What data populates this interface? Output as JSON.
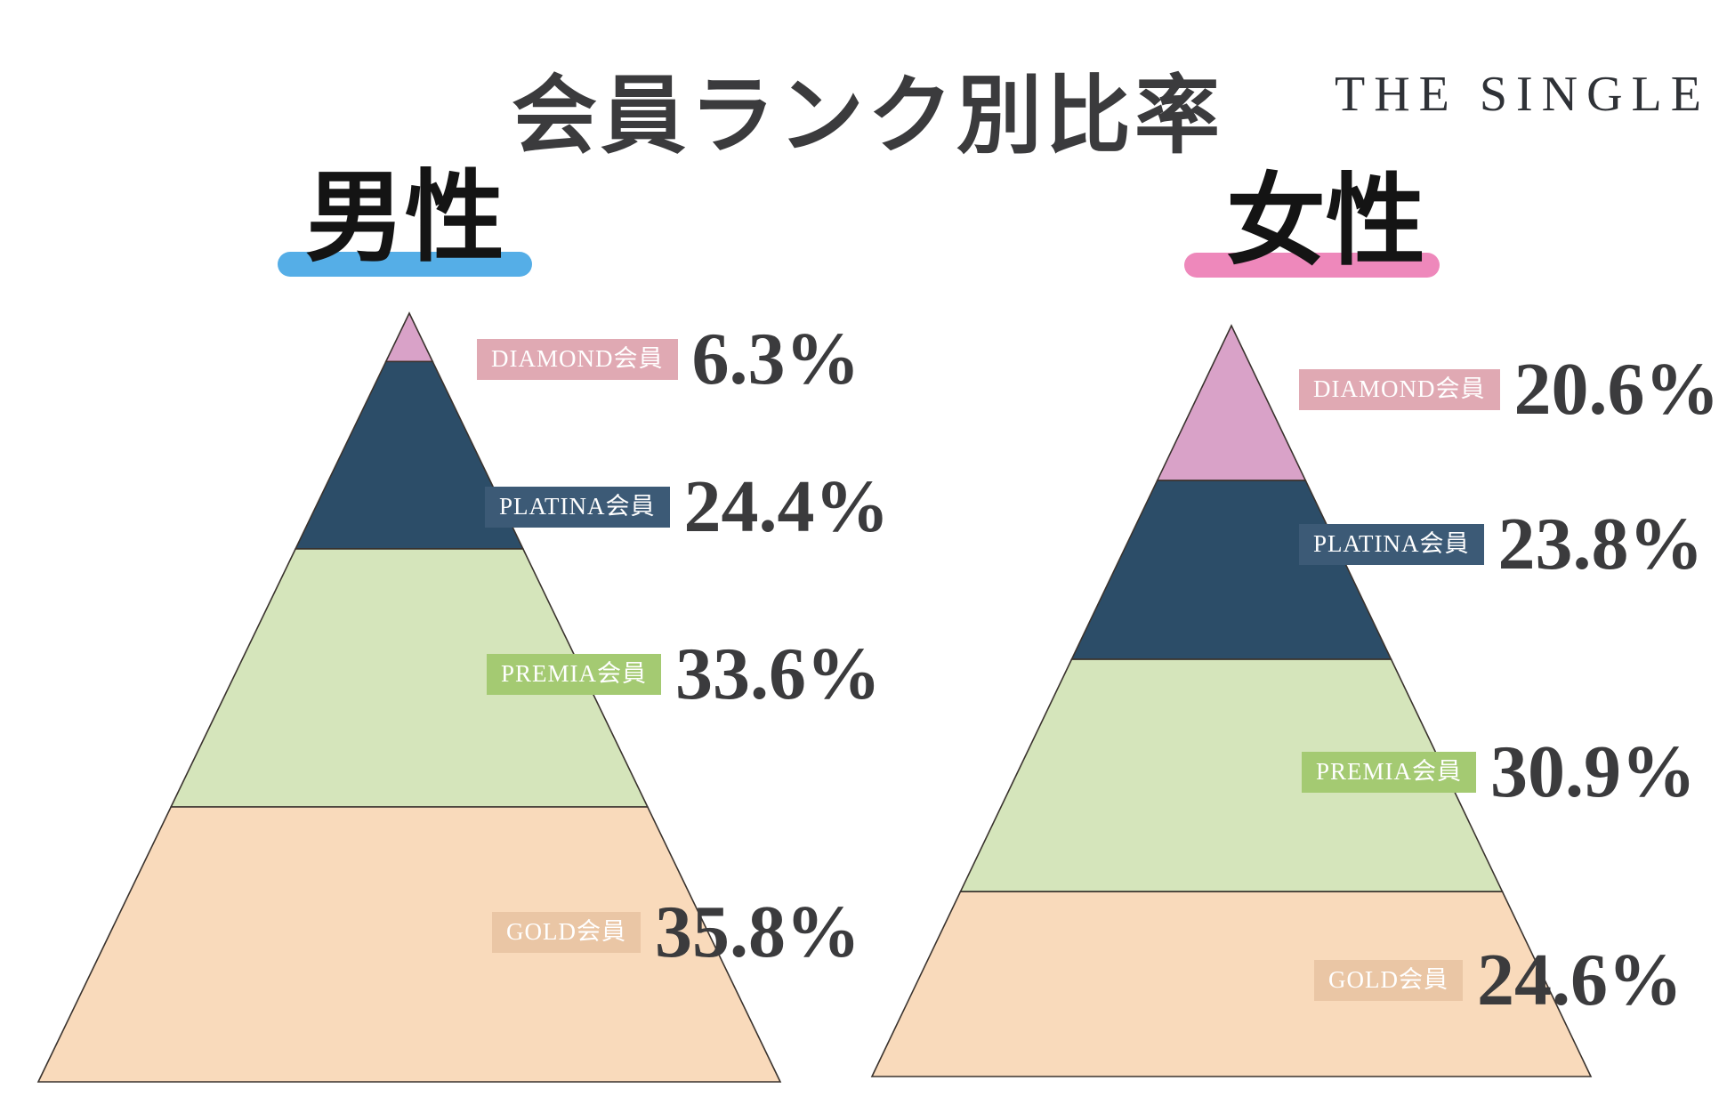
{
  "title": "会員ランク別比率",
  "logo": "THE SINGLE",
  "text_color": "#3b3b3d",
  "chart_data": [
    {
      "type": "pyramid",
      "group": "男性",
      "accent_color": "#55aee7",
      "segments": [
        {
          "label": "DIAMOND会員",
          "value": 6.3,
          "display": "6.3%",
          "fill": "#d9a2c8",
          "label_bg": "#e0a9b3"
        },
        {
          "label": "PLATINA会員",
          "value": 24.4,
          "display": "24.4%",
          "fill": "#2c4d68",
          "label_bg": "#3c5a76"
        },
        {
          "label": "PREMIA会員",
          "value": 33.6,
          "display": "33.6%",
          "fill": "#d5e5bb",
          "label_bg": "#a4ca72"
        },
        {
          "label": "GOLD会員",
          "value": 35.8,
          "display": "35.8%",
          "fill": "#f9dabb",
          "label_bg": "#eac6a5"
        }
      ]
    },
    {
      "type": "pyramid",
      "group": "女性",
      "accent_color": "#ee88bb",
      "segments": [
        {
          "label": "DIAMOND会員",
          "value": 20.6,
          "display": "20.6%",
          "fill": "#d9a2c8",
          "label_bg": "#e0a9b3"
        },
        {
          "label": "PLATINA会員",
          "value": 23.8,
          "display": "23.8%",
          "fill": "#2c4d68",
          "label_bg": "#3c5a76"
        },
        {
          "label": "PREMIA会員",
          "value": 30.9,
          "display": "30.9%",
          "fill": "#d5e5bb",
          "label_bg": "#a4ca72"
        },
        {
          "label": "GOLD会員",
          "value": 24.6,
          "display": "24.6%",
          "fill": "#f9dabb",
          "label_bg": "#eac6a5"
        }
      ]
    }
  ]
}
